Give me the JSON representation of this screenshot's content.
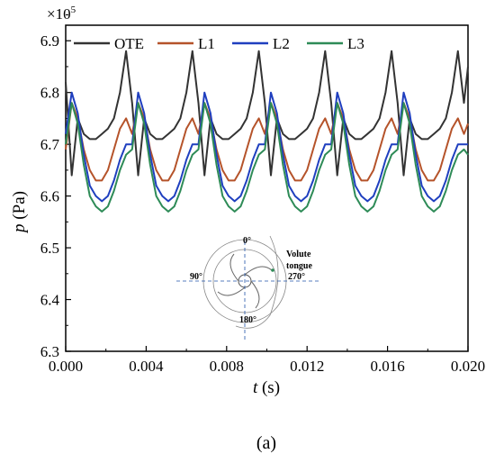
{
  "chart_data": {
    "type": "line",
    "xlabel_var": "t",
    "xlabel_unit": " (s)",
    "ylabel_var": "p",
    "ylabel_unit": " (Pa)",
    "y_multiplier_base": "×10",
    "y_multiplier_exp": "5",
    "xlim": [
      0.0,
      0.02
    ],
    "ylim": [
      6.3,
      6.93
    ],
    "x_ticks": [
      0.0,
      0.004,
      0.008,
      0.012,
      0.016,
      0.02
    ],
    "x_tick_labels": [
      "0.000",
      "0.004",
      "0.008",
      "0.012",
      "0.016",
      "0.020"
    ],
    "y_ticks": [
      6.3,
      6.4,
      6.5,
      6.6,
      6.7,
      6.8,
      6.9
    ],
    "y_tick_labels": [
      "6.3",
      "6.4",
      "6.5",
      "6.6",
      "6.7",
      "6.8",
      "6.9"
    ],
    "legend_position": "top",
    "panel_label": "(a)",
    "x": [
      0.0,
      0.0003,
      0.0006,
      0.0009,
      0.0012,
      0.0015,
      0.0018,
      0.0021,
      0.0024,
      0.0027,
      0.003,
      0.0033,
      0.0036,
      0.0039,
      0.0042,
      0.0045,
      0.0048,
      0.0051,
      0.0054,
      0.0057,
      0.006,
      0.0063,
      0.0066,
      0.0069,
      0.0072,
      0.0075,
      0.0078,
      0.0081,
      0.0084,
      0.0087,
      0.009,
      0.0093,
      0.0096,
      0.0099,
      0.0102,
      0.0105,
      0.0108,
      0.0111,
      0.0114,
      0.0117,
      0.012,
      0.0123,
      0.0126,
      0.0129,
      0.0132,
      0.0135,
      0.0138,
      0.0141,
      0.0144,
      0.0147,
      0.015,
      0.0153,
      0.0156,
      0.0159,
      0.0162,
      0.0165,
      0.0168,
      0.0171,
      0.0174,
      0.0177,
      0.018,
      0.0183,
      0.0186,
      0.0189,
      0.0192,
      0.0195,
      0.0198,
      0.02
    ],
    "series": [
      {
        "name": "OTE",
        "color": "#333333",
        "values": [
          6.82,
          6.64,
          6.75,
          6.72,
          6.71,
          6.71,
          6.72,
          6.73,
          6.75,
          6.8,
          6.88,
          6.78,
          6.64,
          6.75,
          6.72,
          6.71,
          6.71,
          6.72,
          6.73,
          6.75,
          6.8,
          6.88,
          6.78,
          6.64,
          6.75,
          6.72,
          6.71,
          6.71,
          6.72,
          6.73,
          6.75,
          6.8,
          6.88,
          6.78,
          6.64,
          6.75,
          6.72,
          6.71,
          6.71,
          6.72,
          6.73,
          6.75,
          6.8,
          6.88,
          6.78,
          6.64,
          6.75,
          6.72,
          6.71,
          6.71,
          6.72,
          6.73,
          6.75,
          6.8,
          6.88,
          6.78,
          6.64,
          6.75,
          6.72,
          6.71,
          6.71,
          6.72,
          6.73,
          6.75,
          6.8,
          6.88,
          6.78,
          6.85
        ]
      },
      {
        "name": "L1",
        "color": "#b5532a",
        "values": [
          6.69,
          6.78,
          6.75,
          6.69,
          6.65,
          6.63,
          6.63,
          6.65,
          6.69,
          6.73,
          6.75,
          6.72,
          6.78,
          6.75,
          6.69,
          6.65,
          6.63,
          6.63,
          6.65,
          6.69,
          6.73,
          6.75,
          6.72,
          6.78,
          6.75,
          6.69,
          6.65,
          6.63,
          6.63,
          6.65,
          6.69,
          6.73,
          6.75,
          6.72,
          6.78,
          6.75,
          6.69,
          6.65,
          6.63,
          6.63,
          6.65,
          6.69,
          6.73,
          6.75,
          6.72,
          6.78,
          6.75,
          6.69,
          6.65,
          6.63,
          6.63,
          6.65,
          6.69,
          6.73,
          6.75,
          6.72,
          6.78,
          6.75,
          6.69,
          6.65,
          6.63,
          6.63,
          6.65,
          6.69,
          6.73,
          6.75,
          6.72,
          6.74
        ]
      },
      {
        "name": "L2",
        "color": "#1f3fbf",
        "values": [
          6.72,
          6.8,
          6.76,
          6.68,
          6.62,
          6.6,
          6.59,
          6.6,
          6.63,
          6.67,
          6.7,
          6.7,
          6.8,
          6.76,
          6.68,
          6.62,
          6.6,
          6.59,
          6.6,
          6.63,
          6.67,
          6.7,
          6.7,
          6.8,
          6.76,
          6.68,
          6.62,
          6.6,
          6.59,
          6.6,
          6.63,
          6.67,
          6.7,
          6.7,
          6.8,
          6.76,
          6.68,
          6.62,
          6.6,
          6.59,
          6.6,
          6.63,
          6.67,
          6.7,
          6.7,
          6.8,
          6.76,
          6.68,
          6.62,
          6.6,
          6.59,
          6.6,
          6.63,
          6.67,
          6.7,
          6.7,
          6.8,
          6.76,
          6.68,
          6.62,
          6.6,
          6.59,
          6.6,
          6.63,
          6.67,
          6.7,
          6.7,
          6.7
        ]
      },
      {
        "name": "L3",
        "color": "#2e8b57",
        "values": [
          6.7,
          6.78,
          6.74,
          6.66,
          6.6,
          6.58,
          6.57,
          6.58,
          6.61,
          6.65,
          6.68,
          6.69,
          6.78,
          6.74,
          6.66,
          6.6,
          6.58,
          6.57,
          6.58,
          6.61,
          6.65,
          6.68,
          6.69,
          6.78,
          6.74,
          6.66,
          6.6,
          6.58,
          6.57,
          6.58,
          6.61,
          6.65,
          6.68,
          6.69,
          6.78,
          6.74,
          6.66,
          6.6,
          6.58,
          6.57,
          6.58,
          6.61,
          6.65,
          6.68,
          6.69,
          6.78,
          6.74,
          6.66,
          6.6,
          6.58,
          6.57,
          6.58,
          6.61,
          6.65,
          6.68,
          6.69,
          6.78,
          6.74,
          6.66,
          6.6,
          6.58,
          6.57,
          6.58,
          6.61,
          6.65,
          6.68,
          6.69,
          6.68
        ]
      }
    ],
    "inset": {
      "label_top": "0°",
      "label_left": "90°",
      "label_bottom": "180°",
      "label_right": "270°",
      "label_volute_1": "Volute",
      "label_volute_2": "tongue"
    }
  }
}
